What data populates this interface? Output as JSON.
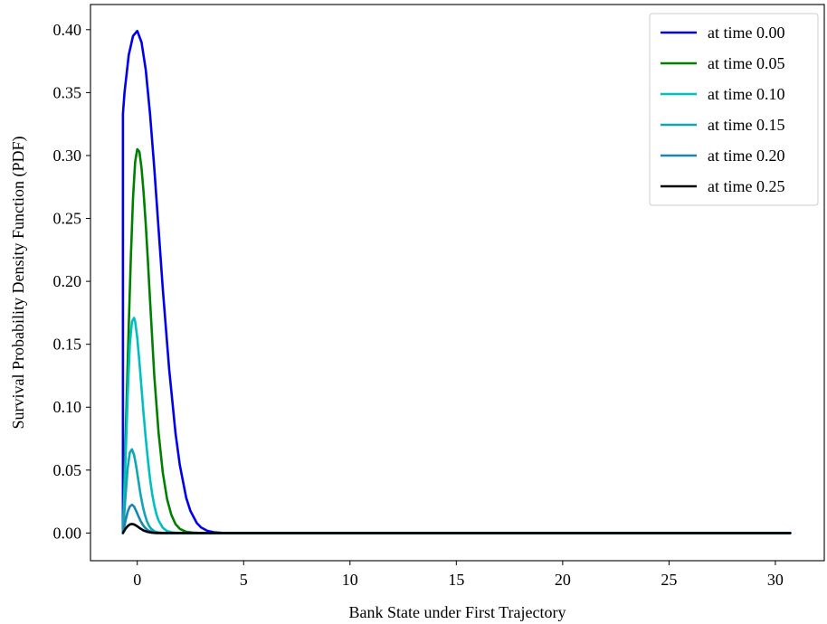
{
  "chart_data": {
    "type": "line",
    "title": "",
    "xlabel": "Bank State under First Trajectory",
    "ylabel": "Survival Probability Density Function (PDF)",
    "xlim": [
      -2.2,
      32.3
    ],
    "ylim": [
      -0.022,
      0.42
    ],
    "x_ticks": [
      0,
      5,
      10,
      15,
      20,
      25,
      30
    ],
    "y_ticks": [
      0.0,
      0.05,
      0.1,
      0.15,
      0.2,
      0.25,
      0.3,
      0.35,
      0.4
    ],
    "x_tick_labels": [
      "0",
      "5",
      "10",
      "15",
      "20",
      "25",
      "30"
    ],
    "y_tick_labels": [
      "0.00",
      "0.05",
      "0.10",
      "0.15",
      "0.20",
      "0.25",
      "0.30",
      "0.35",
      "0.40"
    ],
    "grid": false,
    "legend_position": "top-right",
    "x_range_of_series": [
      -0.674,
      30.7
    ],
    "series": [
      {
        "name": "at time 0.00",
        "color": "#0000ee",
        "x": [
          -0.674,
          -0.674,
          -0.6,
          -0.4,
          -0.2,
          0.0,
          0.2,
          0.4,
          0.6,
          0.8,
          1.0,
          1.2,
          1.5,
          1.8,
          2.0,
          2.3,
          2.5,
          2.8,
          3.0,
          3.3,
          3.6,
          4.0,
          4.5,
          30.7
        ],
        "y": [
          0.0,
          0.333,
          0.35,
          0.38,
          0.395,
          0.399,
          0.39,
          0.368,
          0.333,
          0.29,
          0.242,
          0.194,
          0.13,
          0.079,
          0.054,
          0.028,
          0.0175,
          0.0079,
          0.0044,
          0.0017,
          0.0006,
          0.0001,
          0.0,
          0.0
        ]
      },
      {
        "name": "at time 0.05",
        "color": "#008000",
        "x": [
          -0.674,
          -0.5,
          -0.4,
          -0.3,
          -0.2,
          -0.1,
          0.0,
          0.1,
          0.2,
          0.3,
          0.4,
          0.5,
          0.6,
          0.8,
          1.0,
          1.2,
          1.4,
          1.6,
          1.8,
          2.0,
          2.3,
          2.6,
          3.0,
          30.7
        ],
        "y": [
          0.0,
          0.105,
          0.165,
          0.22,
          0.266,
          0.295,
          0.305,
          0.303,
          0.29,
          0.27,
          0.245,
          0.216,
          0.185,
          0.125,
          0.08,
          0.048,
          0.027,
          0.0145,
          0.007,
          0.0033,
          0.001,
          0.0003,
          0.0,
          0.0
        ]
      },
      {
        "name": "at time 0.10",
        "color": "#00bfbf",
        "x": [
          -0.674,
          -0.55,
          -0.45,
          -0.35,
          -0.25,
          -0.15,
          -0.1,
          0.0,
          0.1,
          0.2,
          0.3,
          0.4,
          0.5,
          0.6,
          0.7,
          0.8,
          0.9,
          1.0,
          1.2,
          1.4,
          1.6,
          1.8,
          2.0,
          30.7
        ],
        "y": [
          0.0,
          0.06,
          0.11,
          0.15,
          0.168,
          0.171,
          0.168,
          0.155,
          0.136,
          0.115,
          0.094,
          0.075,
          0.058,
          0.043,
          0.031,
          0.022,
          0.015,
          0.01,
          0.0042,
          0.0016,
          0.0006,
          0.0002,
          0.0,
          0.0
        ]
      },
      {
        "name": "at time 0.15",
        "color": "#10a5b5",
        "x": [
          -0.674,
          -0.55,
          -0.45,
          -0.35,
          -0.25,
          -0.15,
          -0.05,
          0.05,
          0.15,
          0.25,
          0.35,
          0.45,
          0.55,
          0.65,
          0.8,
          1.0,
          1.2,
          1.4,
          30.7
        ],
        "y": [
          0.0,
          0.03,
          0.052,
          0.064,
          0.0665,
          0.062,
          0.053,
          0.042,
          0.031,
          0.022,
          0.015,
          0.0095,
          0.0058,
          0.0034,
          0.0014,
          0.0004,
          0.0001,
          0.0,
          0.0
        ]
      },
      {
        "name": "at time 0.20",
        "color": "#1a85b0",
        "x": [
          -0.674,
          -0.55,
          -0.45,
          -0.35,
          -0.25,
          -0.15,
          -0.05,
          0.05,
          0.15,
          0.25,
          0.35,
          0.5,
          0.7,
          0.9,
          1.1,
          30.7
        ],
        "y": [
          0.0,
          0.01,
          0.017,
          0.021,
          0.0225,
          0.021,
          0.0175,
          0.0135,
          0.0098,
          0.0068,
          0.0045,
          0.0022,
          0.0007,
          0.0002,
          0.0,
          0.0
        ]
      },
      {
        "name": "at time 0.25",
        "color": "#000000",
        "x": [
          -0.674,
          -0.55,
          -0.45,
          -0.35,
          -0.25,
          -0.15,
          -0.05,
          0.05,
          0.15,
          0.3,
          0.5,
          0.7,
          0.9,
          30.7
        ],
        "y": [
          0.0,
          0.0035,
          0.0055,
          0.0068,
          0.0072,
          0.0068,
          0.0059,
          0.0047,
          0.0035,
          0.002,
          0.0008,
          0.0002,
          0.0,
          0.0
        ]
      }
    ]
  }
}
